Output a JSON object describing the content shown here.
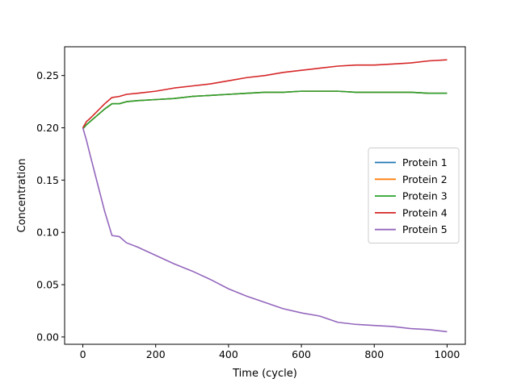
{
  "chart_data": {
    "type": "line",
    "xlabel": "Time (cycle)",
    "ylabel": "Concentration",
    "xlim": [
      -50,
      1050
    ],
    "ylim": [
      -0.007,
      0.2775
    ],
    "xticks": [
      0,
      200,
      400,
      600,
      800,
      1000
    ],
    "yticks": [
      0.0,
      0.05,
      0.1,
      0.15,
      0.2,
      0.25
    ],
    "xtick_labels": [
      "0",
      "200",
      "400",
      "600",
      "800",
      "1000"
    ],
    "ytick_labels": [
      "0.00",
      "0.05",
      "0.10",
      "0.15",
      "0.20",
      "0.25"
    ],
    "grid": false,
    "legend_position": "center-right",
    "x": [
      0,
      10,
      20,
      40,
      60,
      80,
      100,
      120,
      150,
      200,
      250,
      300,
      350,
      400,
      450,
      500,
      550,
      600,
      650,
      700,
      750,
      800,
      850,
      900,
      950,
      1000
    ],
    "series": [
      {
        "name": "Protein 1",
        "color": "#1f77b4",
        "values": [
          0.199,
          0.203,
          0.206,
          0.212,
          0.218,
          0.223,
          0.223,
          0.225,
          0.226,
          0.227,
          0.228,
          0.23,
          0.231,
          0.232,
          0.233,
          0.234,
          0.234,
          0.235,
          0.235,
          0.235,
          0.234,
          0.234,
          0.234,
          0.234,
          0.233,
          0.233
        ]
      },
      {
        "name": "Protein 2",
        "color": "#ff7f0e",
        "values": [
          0.199,
          0.203,
          0.206,
          0.212,
          0.218,
          0.223,
          0.223,
          0.225,
          0.226,
          0.227,
          0.228,
          0.23,
          0.231,
          0.232,
          0.233,
          0.234,
          0.234,
          0.235,
          0.235,
          0.235,
          0.234,
          0.234,
          0.234,
          0.234,
          0.233,
          0.233
        ]
      },
      {
        "name": "Protein 3",
        "color": "#2ca02c",
        "values": [
          0.199,
          0.203,
          0.206,
          0.212,
          0.218,
          0.223,
          0.223,
          0.225,
          0.226,
          0.227,
          0.228,
          0.23,
          0.231,
          0.232,
          0.233,
          0.234,
          0.234,
          0.235,
          0.235,
          0.235,
          0.234,
          0.234,
          0.234,
          0.234,
          0.233,
          0.233
        ]
      },
      {
        "name": "Protein 4",
        "color": "#d62728",
        "values": [
          0.2,
          0.206,
          0.209,
          0.216,
          0.223,
          0.229,
          0.23,
          0.232,
          0.233,
          0.235,
          0.238,
          0.24,
          0.242,
          0.245,
          0.248,
          0.25,
          0.253,
          0.255,
          0.257,
          0.259,
          0.26,
          0.26,
          0.261,
          0.262,
          0.264,
          0.265
        ]
      },
      {
        "name": "Protein 5",
        "color": "#9467bd",
        "values": [
          0.2,
          0.188,
          0.174,
          0.147,
          0.12,
          0.097,
          0.096,
          0.09,
          0.086,
          0.078,
          0.07,
          0.063,
          0.055,
          0.046,
          0.039,
          0.033,
          0.027,
          0.023,
          0.02,
          0.014,
          0.012,
          0.011,
          0.01,
          0.008,
          0.007,
          0.005
        ]
      }
    ]
  }
}
